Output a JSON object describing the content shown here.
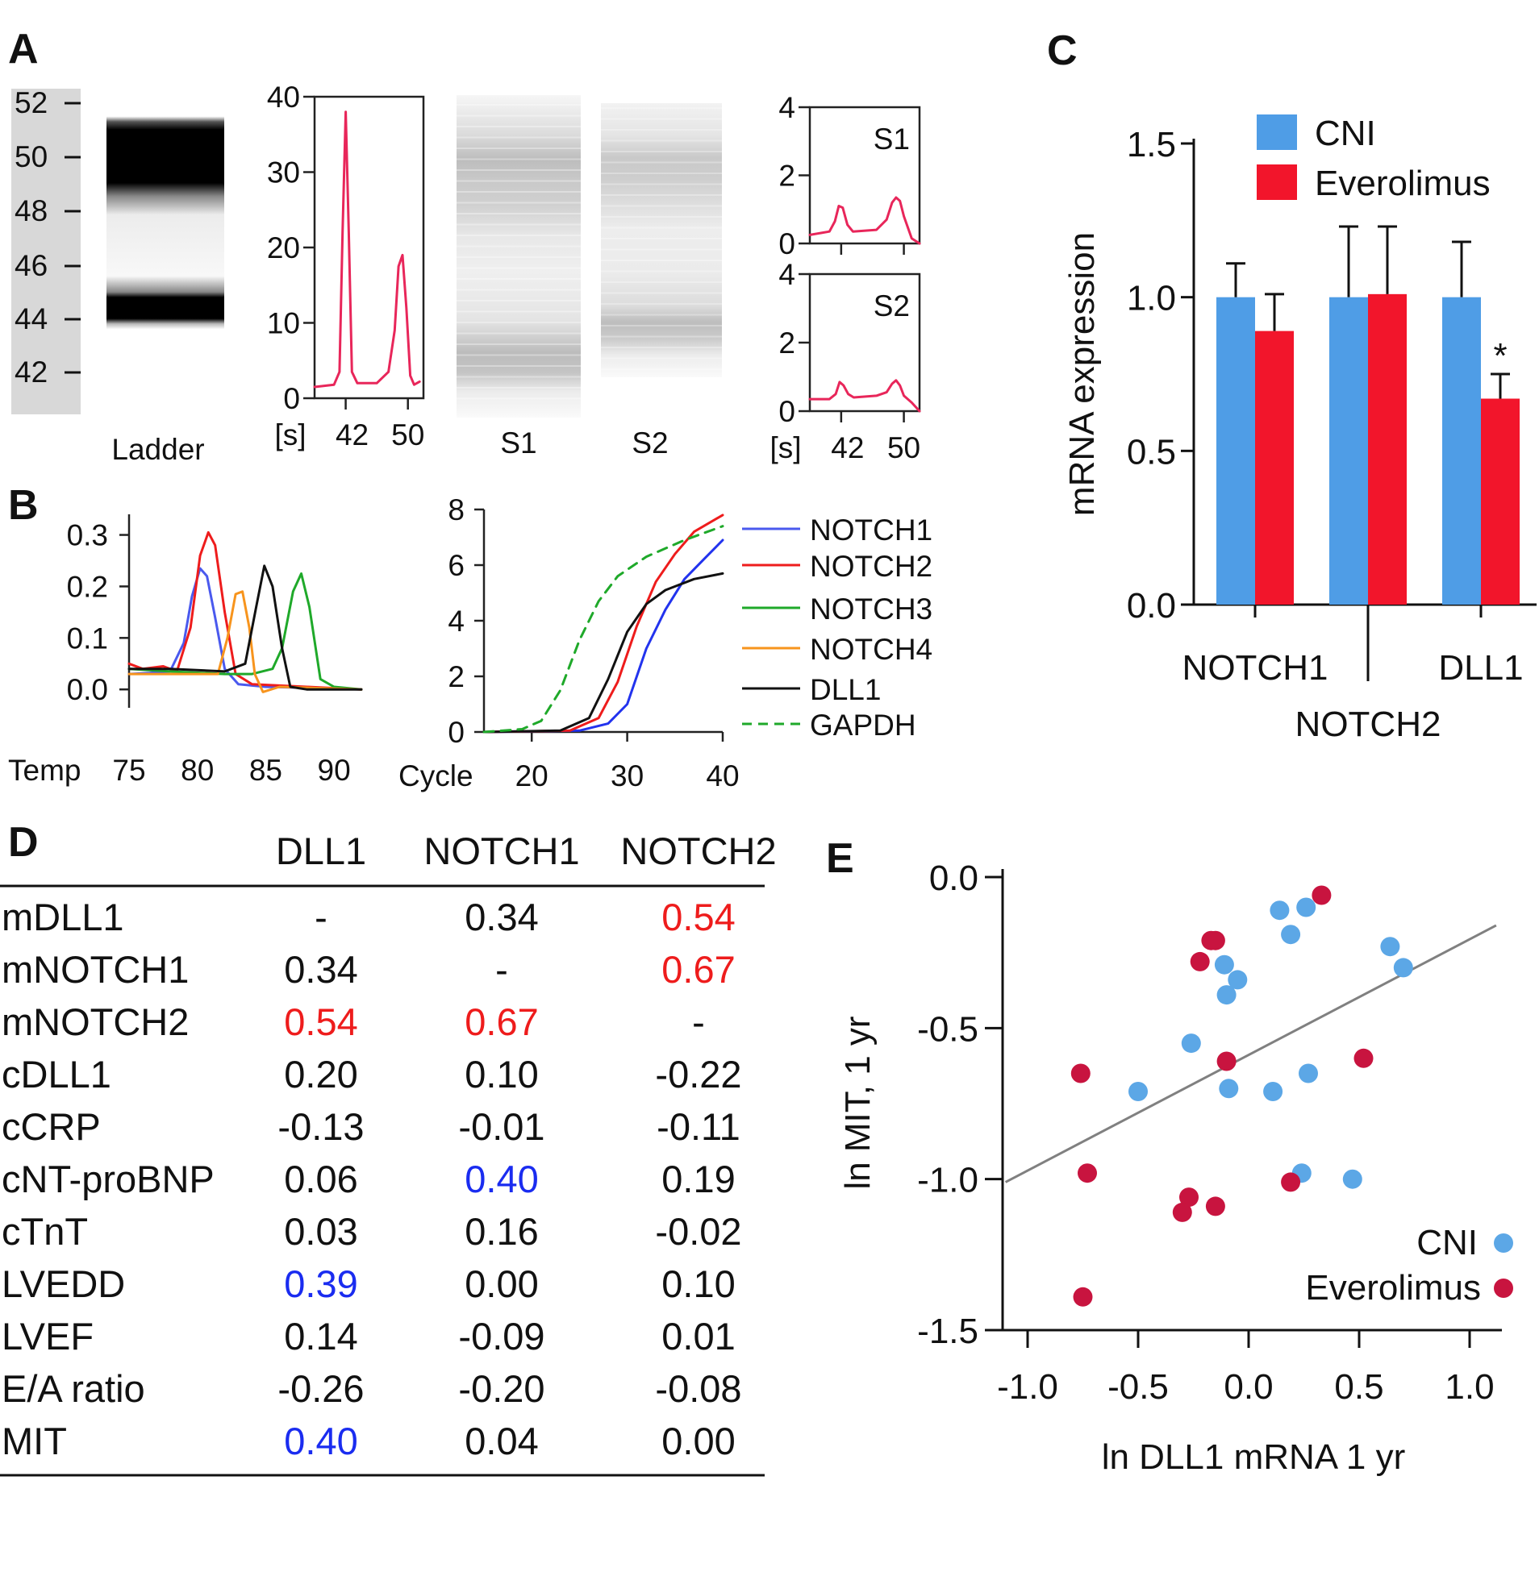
{
  "panel_labels": {
    "a": "A",
    "b": "B",
    "c": "C",
    "d": "D",
    "e": "E"
  },
  "colors": {
    "trace_red": "#e8265a",
    "cni_blue": "#4f9de6",
    "everolimus_red": "#f2152b",
    "scatter_red": "#c8143f",
    "scatter_blue": "#5ca7e6",
    "sig_red": "#ee1c1c",
    "sig_blue": "#1a2cf0",
    "regression_gray": "#808080"
  },
  "chart_data": [
    {
      "panel": "A",
      "type": "line",
      "gel_lanes": [
        "Ladder",
        "S1",
        "S2"
      ],
      "ladder_size_labels": [
        "52",
        "50",
        "48",
        "46",
        "44",
        "42"
      ],
      "ladder": {
        "x_label_prefix": "[s]",
        "xticks": [
          "42",
          "50"
        ],
        "yticks": [
          "0",
          "10",
          "20",
          "30",
          "40"
        ],
        "ylim": [
          0,
          40
        ],
        "xlim": [
          38,
          52
        ],
        "x": [
          38.0,
          40.5,
          41.2,
          41.6,
          42.0,
          42.4,
          42.8,
          43.5,
          46.0,
          47.5,
          48.3,
          48.8,
          49.3,
          49.8,
          50.3,
          50.8,
          51.5
        ],
        "y": [
          1.5,
          1.8,
          3.5,
          22.0,
          38.0,
          22.0,
          3.5,
          2.0,
          2.0,
          3.5,
          9.0,
          17.5,
          19.0,
          12.0,
          3.0,
          1.8,
          2.2
        ]
      },
      "insets": [
        {
          "label": "S1",
          "xticks": [
            "42",
            "50"
          ],
          "yticks": [
            "0",
            "2",
            "4"
          ],
          "ylim": [
            0,
            4
          ],
          "xlim": [
            38,
            52
          ],
          "x": [
            38.0,
            40.5,
            41.2,
            41.7,
            42.2,
            42.8,
            43.5,
            46.5,
            47.8,
            48.5,
            49.0,
            49.5,
            50.0,
            51.0,
            52.0
          ],
          "y": [
            0.25,
            0.35,
            0.65,
            1.1,
            1.05,
            0.55,
            0.35,
            0.4,
            0.7,
            1.2,
            1.35,
            1.25,
            0.8,
            0.15,
            0.0
          ]
        },
        {
          "label": "S2",
          "xticks": [
            "42",
            "50"
          ],
          "yticks": [
            "0",
            "2",
            "4"
          ],
          "ylim": [
            0,
            4
          ],
          "xlim": [
            38,
            52
          ],
          "x": [
            38.0,
            40.5,
            41.3,
            41.8,
            42.3,
            42.9,
            43.6,
            46.5,
            47.8,
            48.5,
            49.0,
            49.5,
            50.0,
            51.0,
            52.0
          ],
          "y": [
            0.35,
            0.35,
            0.5,
            0.85,
            0.75,
            0.5,
            0.4,
            0.45,
            0.55,
            0.8,
            0.9,
            0.75,
            0.45,
            0.25,
            0.0
          ]
        }
      ],
      "s_label": "[s]"
    },
    {
      "panel": "B-left",
      "type": "line",
      "xlabel": "Temp",
      "xlim": [
        75,
        92
      ],
      "ylim": [
        -0.02,
        0.34
      ],
      "xticks": [
        "75",
        "80",
        "85",
        "90"
      ],
      "yticks": [
        "0.0",
        "0.1",
        "0.2",
        "0.3"
      ],
      "series": [
        {
          "name": "NOTCH1",
          "color": "#4a59ee",
          "x": [
            75,
            76.5,
            78,
            79,
            79.6,
            80.2,
            80.7,
            81.3,
            82,
            83,
            85,
            88,
            92
          ],
          "y": [
            0.03,
            0.032,
            0.035,
            0.09,
            0.18,
            0.235,
            0.22,
            0.14,
            0.04,
            0.01,
            0.005,
            0.003,
            0.0
          ]
        },
        {
          "name": "NOTCH2",
          "color": "#ee1c1c",
          "x": [
            75,
            76,
            77.5,
            78.5,
            79.5,
            80.2,
            80.8,
            81.3,
            82,
            82.8,
            84,
            88,
            92
          ],
          "y": [
            0.05,
            0.04,
            0.045,
            0.035,
            0.12,
            0.26,
            0.305,
            0.28,
            0.15,
            0.03,
            0.01,
            0.005,
            0.0
          ]
        },
        {
          "name": "NOTCH3",
          "color": "#1fa92a",
          "x": [
            75,
            78,
            82,
            84,
            85.5,
            86.2,
            87,
            87.6,
            88.2,
            89,
            90,
            92
          ],
          "y": [
            0.04,
            0.035,
            0.03,
            0.03,
            0.04,
            0.08,
            0.19,
            0.225,
            0.16,
            0.02,
            0.005,
            0.0
          ]
        },
        {
          "name": "NOTCH4",
          "color": "#f7941d",
          "x": [
            75,
            79,
            81.5,
            82.2,
            82.8,
            83.3,
            83.8,
            84.2,
            84.8,
            86,
            92
          ],
          "y": [
            0.03,
            0.03,
            0.03,
            0.1,
            0.185,
            0.19,
            0.12,
            0.03,
            -0.005,
            0.005,
            0.0
          ]
        },
        {
          "name": "DLL1",
          "color": "#111111",
          "x": [
            75,
            78,
            82,
            83.5,
            84.3,
            84.9,
            85.5,
            86.2,
            86.8,
            88,
            92
          ],
          "y": [
            0.04,
            0.04,
            0.035,
            0.05,
            0.16,
            0.24,
            0.2,
            0.08,
            0.005,
            0.0,
            0.0
          ]
        }
      ]
    },
    {
      "panel": "B-right",
      "type": "line",
      "xlabel": "Cycle",
      "xlim": [
        15,
        40
      ],
      "ylim": [
        0,
        8
      ],
      "xticks": [
        "20",
        "30",
        "40"
      ],
      "yticks": [
        "0",
        "2",
        "4",
        "6",
        "8"
      ],
      "legend": [
        "NOTCH1",
        "NOTCH2",
        "NOTCH3",
        "NOTCH4",
        "DLL1",
        "GAPDH"
      ],
      "series": [
        {
          "name": "NOTCH1",
          "color": "#2233ee",
          "x": [
            15,
            25,
            28,
            30,
            32,
            34,
            36,
            38,
            40
          ],
          "y": [
            0,
            0.05,
            0.3,
            1.0,
            3.0,
            4.4,
            5.5,
            6.2,
            6.9
          ]
        },
        {
          "name": "NOTCH2",
          "color": "#ee1c1c",
          "x": [
            15,
            24,
            27,
            29,
            31,
            33,
            35,
            37,
            40
          ],
          "y": [
            0,
            0.05,
            0.5,
            1.8,
            3.8,
            5.4,
            6.4,
            7.2,
            7.8
          ]
        },
        {
          "name": "DLL1",
          "color": "#111111",
          "x": [
            15,
            23,
            26,
            28,
            30,
            32,
            34,
            37,
            40
          ],
          "y": [
            0,
            0.05,
            0.5,
            1.9,
            3.6,
            4.6,
            5.1,
            5.5,
            5.7
          ]
        },
        {
          "name": "GAPDH",
          "color": "#1fa92a",
          "dashed": true,
          "x": [
            15,
            19,
            21,
            23,
            25,
            27,
            29,
            32,
            36,
            40
          ],
          "y": [
            0,
            0.1,
            0.4,
            1.5,
            3.3,
            4.7,
            5.6,
            6.3,
            6.9,
            7.4
          ]
        }
      ],
      "legend_colors": [
        "#4a59ee",
        "#ee1c1c",
        "#1fa92a",
        "#f7941d",
        "#111111",
        "#1fa92a"
      ]
    },
    {
      "panel": "C",
      "type": "bar",
      "ylabel": "mRNA expression",
      "ylim": [
        0,
        1.5
      ],
      "yticks": [
        "0.0",
        "0.5",
        "1.0",
        "1.5"
      ],
      "categories": [
        "NOTCH1",
        "NOTCH2",
        "DLL1"
      ],
      "series": [
        {
          "name": "CNI",
          "color": "#4f9de6",
          "values": [
            1.0,
            1.0,
            1.0
          ],
          "errors": [
            0.11,
            0.23,
            0.18
          ]
        },
        {
          "name": "Everolimus",
          "color": "#f2152b",
          "values": [
            0.89,
            1.01,
            0.67
          ],
          "errors": [
            0.12,
            0.22,
            0.08
          ]
        }
      ],
      "annotations": [
        {
          "category": "DLL1",
          "series": "Everolimus",
          "text": "*"
        }
      ]
    },
    {
      "panel": "D",
      "type": "table",
      "columns": [
        "DLL1",
        "NOTCH1",
        "NOTCH2"
      ],
      "rows": [
        {
          "label": "mDLL1",
          "cells": [
            {
              "v": "-",
              "c": "k"
            },
            {
              "v": "0.34",
              "c": "k"
            },
            {
              "v": "0.54",
              "c": "r"
            }
          ]
        },
        {
          "label": "mNOTCH1",
          "cells": [
            {
              "v": "0.34",
              "c": "k"
            },
            {
              "v": "-",
              "c": "k"
            },
            {
              "v": "0.67",
              "c": "r"
            }
          ]
        },
        {
          "label": "mNOTCH2",
          "cells": [
            {
              "v": "0.54",
              "c": "r"
            },
            {
              "v": "0.67",
              "c": "r"
            },
            {
              "v": "-",
              "c": "k"
            }
          ]
        },
        {
          "label": "cDLL1",
          "cells": [
            {
              "v": "0.20",
              "c": "k"
            },
            {
              "v": "0.10",
              "c": "k"
            },
            {
              "v": "-0.22",
              "c": "k"
            }
          ]
        },
        {
          "label": "cCRP",
          "cells": [
            {
              "v": "-0.13",
              "c": "k"
            },
            {
              "v": "-0.01",
              "c": "k"
            },
            {
              "v": "-0.11",
              "c": "k"
            }
          ]
        },
        {
          "label": "cNT-proBNP",
          "cells": [
            {
              "v": "0.06",
              "c": "k"
            },
            {
              "v": "0.40",
              "c": "b"
            },
            {
              "v": "0.19",
              "c": "k"
            }
          ]
        },
        {
          "label": "cTnT",
          "cells": [
            {
              "v": "0.03",
              "c": "k"
            },
            {
              "v": "0.16",
              "c": "k"
            },
            {
              "v": "-0.02",
              "c": "k"
            }
          ]
        },
        {
          "label": "LVEDD",
          "cells": [
            {
              "v": "0.39",
              "c": "b"
            },
            {
              "v": "0.00",
              "c": "k"
            },
            {
              "v": "0.10",
              "c": "k"
            }
          ]
        },
        {
          "label": "LVEF",
          "cells": [
            {
              "v": "0.14",
              "c": "k"
            },
            {
              "v": "-0.09",
              "c": "k"
            },
            {
              "v": "0.01",
              "c": "k"
            }
          ]
        },
        {
          "label": "E/A ratio",
          "cells": [
            {
              "v": "-0.26",
              "c": "k"
            },
            {
              "v": "-0.20",
              "c": "k"
            },
            {
              "v": "-0.08",
              "c": "k"
            }
          ]
        },
        {
          "label": "MIT",
          "cells": [
            {
              "v": "0.40",
              "c": "b"
            },
            {
              "v": "0.04",
              "c": "k"
            },
            {
              "v": "0.00",
              "c": "k"
            }
          ]
        }
      ]
    },
    {
      "panel": "E",
      "type": "scatter",
      "xlabel": "ln DLL1 mRNA 1 yr",
      "ylabel": "ln MIT, 1 yr",
      "xlim": [
        -1.1,
        1.1
      ],
      "ylim": [
        -1.5,
        0.0
      ],
      "xticks": [
        "-1.0",
        "-0.5",
        "0.0",
        "0.5",
        "1.0"
      ],
      "yticks": [
        "0.0",
        "-0.5",
        "-1.0",
        "-1.5"
      ],
      "regression": {
        "x": [
          -1.1,
          1.12
        ],
        "y": [
          -1.01,
          -0.16
        ]
      },
      "series": [
        {
          "name": "CNI",
          "color": "#5ca7e6",
          "points": [
            [
              0.14,
              -0.11
            ],
            [
              0.26,
              -0.1
            ],
            [
              0.19,
              -0.19
            ],
            [
              0.64,
              -0.23
            ],
            [
              0.7,
              -0.3
            ],
            [
              -0.11,
              -0.29
            ],
            [
              -0.05,
              -0.34
            ],
            [
              -0.1,
              -0.39
            ],
            [
              -0.26,
              -0.55
            ],
            [
              -0.5,
              -0.71
            ],
            [
              -0.09,
              -0.7
            ],
            [
              0.11,
              -0.71
            ],
            [
              0.27,
              -0.65
            ],
            [
              0.24,
              -0.98
            ],
            [
              0.47,
              -1.0
            ]
          ]
        },
        {
          "name": "Everolimus",
          "color": "#c8143f",
          "points": [
            [
              0.33,
              -0.06
            ],
            [
              -0.17,
              -0.21
            ],
            [
              -0.15,
              -0.21
            ],
            [
              -0.22,
              -0.28
            ],
            [
              -0.76,
              -0.65
            ],
            [
              -0.1,
              -0.61
            ],
            [
              0.52,
              -0.6
            ],
            [
              -0.73,
              -0.98
            ],
            [
              0.19,
              -1.01
            ],
            [
              -0.27,
              -1.06
            ],
            [
              -0.15,
              -1.09
            ],
            [
              -0.3,
              -1.11
            ],
            [
              -0.75,
              -1.39
            ]
          ]
        }
      ]
    }
  ]
}
